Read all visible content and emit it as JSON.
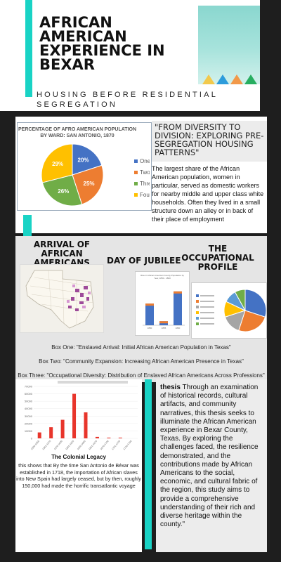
{
  "header": {
    "title": "AFRICAN AMERICAN EXPERIENCE IN BEXAR",
    "subtitle": "HOUSING BEFORE RESIDENTIAL SEGREGATION"
  },
  "pie_section": {
    "quote": "\"FROM DIVERSITY TO DIVISION: EXPLORING PRE-SEGREGATION HOUSING PATTERNS\"",
    "text": "The largest share of the African American population, women in particular, served as domestic workers for nearby middle and upper class white households. Often they lived in a small structure down an alley or in back of their place of employment"
  },
  "middle": {
    "arrival_heading": "ARRIVAL OF AFRICAN AMERICANS",
    "jubilee_heading": "DAY OF JUBILEE",
    "occupational_heading": "THE OCCUPATIONAL PROFILE",
    "bar_thumb_title": "Rise in African American County Population by Year, 1850 - 1860",
    "box_one": "Box One: \"Enslaved Arrival: Initial African American Population in Texas\"",
    "box_two": "Box Two: \"Community Expansion: Increasing African American Presence in Texas\"",
    "box_three": "Box Three: \"Occupational Diversity: Distribution of Enslaved African Americans Across Professions\""
  },
  "legacy": {
    "title": "The Colonial Legacy",
    "text": "this shows that By the time San Antonio de Béxar was established in 1718, the importation of African slaves into New Spain had largely ceased, but by then, roughly 150,000 had made the horrific transatlantic voyage"
  },
  "thesis": {
    "label": "thesis",
    "text": "Through an examination of historical records, cultural artifacts, and community narratives, this thesis seeks to illuminate the African American experience in Bexar County, Texas. By exploring the challenges faced, the resilience demonstrated, and the contributions made by African Americans to the social, economic, and cultural fabric of the region, this study aims to provide a comprehensive understanding of their rich and diverse heritage within the county.\""
  },
  "colors": {
    "accent": "#19d3c5",
    "dark_background": "#1e1e1e"
  },
  "chart_data": [
    {
      "type": "pie",
      "title": "PERCENTAGE OF AFRO AMERICAN POPULATION BY WARD: SAN ANTONIO, 1870",
      "categories": [
        "One",
        "Two",
        "Three",
        "Four"
      ],
      "values": [
        20,
        25,
        26,
        29
      ],
      "labels": [
        "20%",
        "25%",
        "26%",
        "29%"
      ],
      "colors": [
        "#4472c4",
        "#ed7d31",
        "#70ad47",
        "#ffc000"
      ],
      "legend": "right"
    },
    {
      "type": "bar",
      "categories": [
        "1850",
        "1855",
        "1860"
      ],
      "values": [
        1600,
        300,
        2500
      ],
      "ylim": [
        0,
        2800
      ],
      "colors": [
        "#4472c4",
        "#ed7d31"
      ]
    },
    {
      "type": "pie",
      "values": [
        30,
        25,
        15,
        12,
        10,
        8
      ],
      "colors": [
        "#4472c4",
        "#ed7d31",
        "#a5a5a5",
        "#ffc000",
        "#5b9bd5",
        "#70ad47"
      ]
    },
    {
      "type": "bar",
      "categories": [
        "1500-1550",
        "1551-1575",
        "1576-1600",
        "1601-1625",
        "1626-1650",
        "1651-1675",
        "1676-1700",
        "1701-1725",
        "1726-1750"
      ],
      "values": [
        8000,
        15000,
        25000,
        60000,
        35000,
        2000,
        1000,
        1000,
        0
      ],
      "ylim": [
        0,
        70000
      ],
      "yticks": [
        "0",
        "10000",
        "20000",
        "30000",
        "40000",
        "50000",
        "60000",
        "70000"
      ],
      "color": "#e8352b"
    }
  ]
}
